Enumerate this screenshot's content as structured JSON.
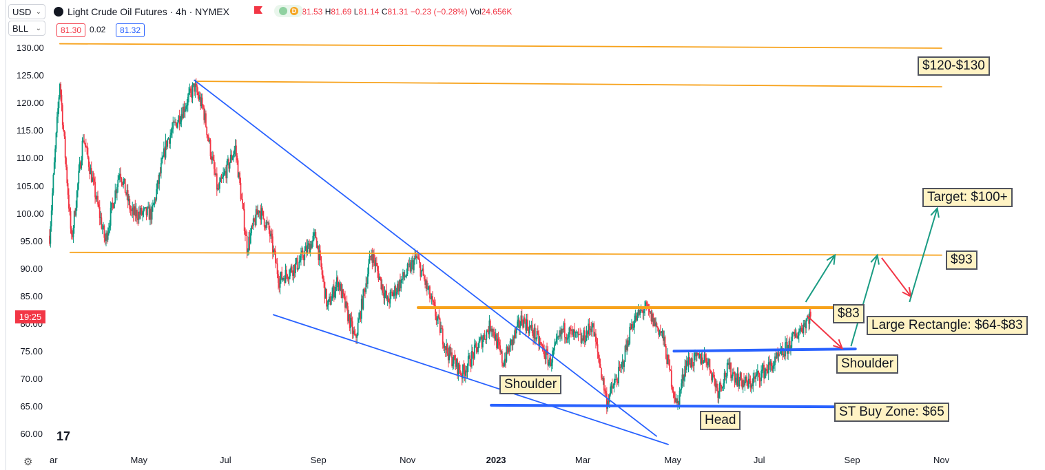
{
  "toolbar": {
    "currency": "USD",
    "broker": "BLL",
    "bid": "81.30",
    "spread": "0.02",
    "ask": "81.32"
  },
  "legend": {
    "title": "Light Crude Oil Futures · 4h · NYMEX",
    "icon_d": "D",
    "open_label": "O",
    "open": "81.53",
    "high_label": "H",
    "high": "81.69",
    "low_label": "L",
    "low": "81.14",
    "close_label": "C",
    "close": "81.31",
    "change": "−0.23 (−0.28%)",
    "vol_label": "Vol",
    "vol": "24.656K"
  },
  "time_badge": "19:25",
  "colors": {
    "up": "#089981",
    "down": "#f23645",
    "orange": "#f7a21b",
    "blue": "#2962ff",
    "green_arrow": "#1a9c83",
    "red_arrow": "#f23645",
    "annotation_bg": "#fff3c4"
  },
  "annotations": {
    "r120": "$120-$130",
    "target": "Target: $100+",
    "r93": "$93",
    "r83": "$83",
    "rect": "Large Rectangle: $64-$83",
    "shoulder_right": "Shoulder",
    "shoulder_left": "Shoulder",
    "head": "Head",
    "buy_zone": "ST Buy Zone: $65"
  },
  "chart_data": {
    "type": "line",
    "y_axis_labels": [
      "130.00",
      "125.00",
      "120.00",
      "115.00",
      "110.00",
      "105.00",
      "100.00",
      "95.00",
      "90.00",
      "85.00",
      "80.00",
      "75.00",
      "70.00",
      "65.00",
      "60.00"
    ],
    "x_axis_labels": [
      "ar",
      "May",
      "Jul",
      "Sep",
      "Nov",
      "2023",
      "Mar",
      "May",
      "Jul",
      "Sep",
      "Nov"
    ],
    "ylim": [
      58,
      132
    ],
    "x_range": [
      "2022-03-01",
      "2023-11-01"
    ],
    "series": [
      {
        "values": [
          {
            "x": "2022-03-01",
            "y": 96
          },
          {
            "x": "2022-03-08",
            "y": 124
          },
          {
            "x": "2022-03-16",
            "y": 95
          },
          {
            "x": "2022-03-24",
            "y": 114
          },
          {
            "x": "2022-04-08",
            "y": 95
          },
          {
            "x": "2022-04-18",
            "y": 108
          },
          {
            "x": "2022-04-26",
            "y": 100
          },
          {
            "x": "2022-05-10",
            "y": 100
          },
          {
            "x": "2022-05-20",
            "y": 113
          },
          {
            "x": "2022-06-08",
            "y": 123
          },
          {
            "x": "2022-06-14",
            "y": 119
          },
          {
            "x": "2022-06-24",
            "y": 104
          },
          {
            "x": "2022-07-06",
            "y": 112
          },
          {
            "x": "2022-07-14",
            "y": 94
          },
          {
            "x": "2022-07-22",
            "y": 101
          },
          {
            "x": "2022-07-29",
            "y": 97
          },
          {
            "x": "2022-08-05",
            "y": 88
          },
          {
            "x": "2022-08-18",
            "y": 91
          },
          {
            "x": "2022-08-30",
            "y": 96
          },
          {
            "x": "2022-09-07",
            "y": 83
          },
          {
            "x": "2022-09-14",
            "y": 88
          },
          {
            "x": "2022-09-26",
            "y": 77
          },
          {
            "x": "2022-10-07",
            "y": 93
          },
          {
            "x": "2022-10-18",
            "y": 84
          },
          {
            "x": "2022-11-07",
            "y": 92
          },
          {
            "x": "2022-11-16",
            "y": 85
          },
          {
            "x": "2022-11-28",
            "y": 75
          },
          {
            "x": "2022-12-08",
            "y": 71
          },
          {
            "x": "2022-12-19",
            "y": 76
          },
          {
            "x": "2022-12-28",
            "y": 80
          },
          {
            "x": "2023-01-05",
            "y": 73
          },
          {
            "x": "2023-01-18",
            "y": 81
          },
          {
            "x": "2023-01-27",
            "y": 78
          },
          {
            "x": "2023-02-06",
            "y": 73
          },
          {
            "x": "2023-02-15",
            "y": 79
          },
          {
            "x": "2023-02-28",
            "y": 77
          },
          {
            "x": "2023-03-07",
            "y": 80
          },
          {
            "x": "2023-03-17",
            "y": 66
          },
          {
            "x": "2023-03-27",
            "y": 72
          },
          {
            "x": "2023-04-03",
            "y": 80
          },
          {
            "x": "2023-04-12",
            "y": 83
          },
          {
            "x": "2023-04-24",
            "y": 78
          },
          {
            "x": "2023-05-04",
            "y": 65
          },
          {
            "x": "2023-05-10",
            "y": 73
          },
          {
            "x": "2023-05-24",
            "y": 74
          },
          {
            "x": "2023-06-01",
            "y": 68
          },
          {
            "x": "2023-06-08",
            "y": 72
          },
          {
            "x": "2023-06-15",
            "y": 70
          },
          {
            "x": "2023-06-22",
            "y": 69
          },
          {
            "x": "2023-06-30",
            "y": 71
          },
          {
            "x": "2023-07-10",
            "y": 73
          },
          {
            "x": "2023-07-19",
            "y": 76
          },
          {
            "x": "2023-07-27",
            "y": 79
          },
          {
            "x": "2023-08-04",
            "y": 82
          }
        ]
      }
    ],
    "lines": [
      {
        "kind": "orange",
        "from": {
          "x": "2022-03-08",
          "y": 130.8
        },
        "to": {
          "x": "2023-11-01",
          "y": 130
        }
      },
      {
        "kind": "orange",
        "from": {
          "x": "2022-06-10",
          "y": 124
        },
        "to": {
          "x": "2023-11-01",
          "y": 123
        }
      },
      {
        "kind": "orange",
        "from": {
          "x": "2022-03-15",
          "y": 93
        },
        "to": {
          "x": "2023-11-01",
          "y": 92.5
        }
      },
      {
        "kind": "orange-thick",
        "from": {
          "x": "2022-11-08",
          "y": 83
        },
        "to": {
          "x": "2023-09-05",
          "y": 83
        }
      },
      {
        "kind": "blue",
        "from": {
          "x": "2022-06-08",
          "y": 124.2
        },
        "to": {
          "x": "2023-04-20",
          "y": 59.7
        }
      },
      {
        "kind": "blue",
        "from": {
          "x": "2022-08-01",
          "y": 81.7
        },
        "to": {
          "x": "2023-04-28",
          "y": 58.2
        }
      },
      {
        "kind": "blue-thick",
        "from": {
          "x": "2022-12-28",
          "y": 65.3
        },
        "to": {
          "x": "2023-08-30",
          "y": 65
        }
      },
      {
        "kind": "blue-thick",
        "from": {
          "x": "2023-05-02",
          "y": 75.1
        },
        "to": {
          "x": "2023-09-03",
          "y": 75.5
        }
      }
    ],
    "arrows": [
      {
        "color": "green",
        "from": {
          "x": "2023-07-31",
          "y": 84
        },
        "to": {
          "x": "2023-08-20",
          "y": 92.5
        }
      },
      {
        "color": "red",
        "from": {
          "x": "2023-08-01",
          "y": 81.5
        },
        "to": {
          "x": "2023-08-25",
          "y": 75.6
        }
      },
      {
        "color": "green",
        "from": {
          "x": "2023-08-31",
          "y": 76
        },
        "to": {
          "x": "2023-09-18",
          "y": 92.5
        }
      },
      {
        "color": "red",
        "from": {
          "x": "2023-09-21",
          "y": 92
        },
        "to": {
          "x": "2023-10-11",
          "y": 85
        }
      },
      {
        "color": "green",
        "from": {
          "x": "2023-10-10",
          "y": 84
        },
        "to": {
          "x": "2023-10-29",
          "y": 101
        }
      }
    ]
  }
}
